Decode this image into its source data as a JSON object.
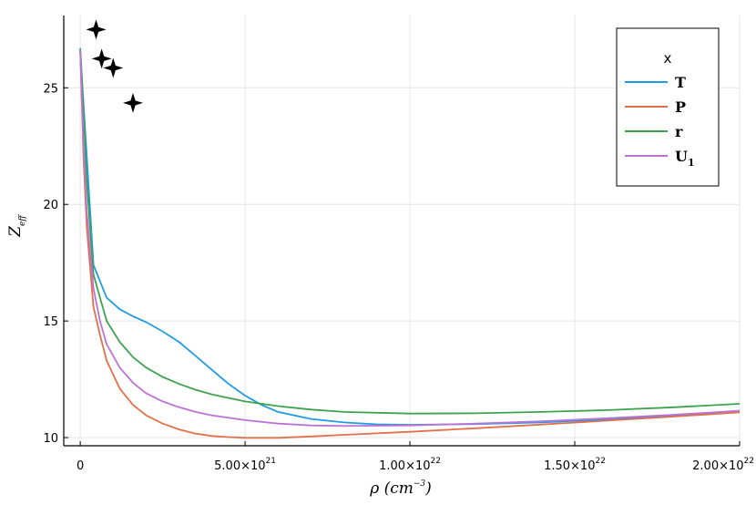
{
  "chart_data": {
    "type": "line",
    "xlabel": "ρ (cm",
    "xlabel_sup": "−3",
    "xlabel_close": ")",
    "ylabel": "Z",
    "ylabel_sub": "eff",
    "xlim": [
      -5e+20,
      2e+22
    ],
    "ylim": [
      9.65,
      28.1
    ],
    "grid": true,
    "legend_title": "x",
    "legend_position": "top-right",
    "x_ticks": [
      {
        "value": 0,
        "label": "0",
        "sup": ""
      },
      {
        "value": 5e+21,
        "label": "5.00×10",
        "sup": "21"
      },
      {
        "value": 1e+22,
        "label": "1.00×10",
        "sup": "22"
      },
      {
        "value": 1.5e+22,
        "label": "1.50×10",
        "sup": "22"
      },
      {
        "value": 2e+22,
        "label": "2.00×10",
        "sup": "22"
      }
    ],
    "y_ticks": [
      {
        "value": 10,
        "label": "10"
      },
      {
        "value": 15,
        "label": "15"
      },
      {
        "value": 20,
        "label": "20"
      },
      {
        "value": 25,
        "label": "25"
      }
    ],
    "series": [
      {
        "name": "T",
        "sub": "",
        "color": "#1f9be6",
        "points": [
          [
            0,
            26.6
          ],
          [
            4e+20,
            17.4
          ],
          [
            8e+20,
            16.0
          ],
          [
            1.2e+21,
            15.5
          ],
          [
            1.6e+21,
            15.2
          ],
          [
            2e+21,
            14.95
          ],
          [
            2.5e+21,
            14.55
          ],
          [
            3e+21,
            14.1
          ],
          [
            3.5e+21,
            13.5
          ],
          [
            4e+21,
            12.9
          ],
          [
            4.5e+21,
            12.3
          ],
          [
            5e+21,
            11.8
          ],
          [
            5.5e+21,
            11.4
          ],
          [
            6e+21,
            11.1
          ],
          [
            7e+21,
            10.8
          ],
          [
            8e+21,
            10.65
          ],
          [
            9e+21,
            10.57
          ],
          [
            1e+22,
            10.55
          ],
          [
            1.2e+22,
            10.58
          ],
          [
            1.4e+22,
            10.65
          ],
          [
            1.6e+22,
            10.78
          ],
          [
            1.8e+22,
            10.95
          ],
          [
            2e+22,
            11.15
          ]
        ]
      },
      {
        "name": "P",
        "sub": "",
        "color": "#e3704a",
        "points": [
          [
            0,
            26.6
          ],
          [
            1e+20,
            22.0
          ],
          [
            2e+20,
            19.0
          ],
          [
            4e+20,
            15.6
          ],
          [
            6e+20,
            14.4
          ],
          [
            8e+20,
            13.3
          ],
          [
            1.2e+21,
            12.1
          ],
          [
            1.6e+21,
            11.4
          ],
          [
            2e+21,
            10.95
          ],
          [
            2.5e+21,
            10.6
          ],
          [
            3e+21,
            10.35
          ],
          [
            3.5e+21,
            10.17
          ],
          [
            4e+21,
            10.07
          ],
          [
            4.5e+21,
            10.02
          ],
          [
            5e+21,
            9.99
          ],
          [
            6e+21,
            9.99
          ],
          [
            7e+21,
            10.05
          ],
          [
            8e+21,
            10.12
          ],
          [
            1e+22,
            10.25
          ],
          [
            1.2e+22,
            10.4
          ],
          [
            1.4e+22,
            10.56
          ],
          [
            1.6e+22,
            10.73
          ],
          [
            1.8e+22,
            10.9
          ],
          [
            2e+22,
            11.08
          ]
        ]
      },
      {
        "name": "r",
        "sub": "",
        "color": "#3ca34e",
        "points": [
          [
            0,
            26.7
          ],
          [
            1e+20,
            24.0
          ],
          [
            2e+20,
            21.0
          ],
          [
            4e+20,
            17.0
          ],
          [
            6e+20,
            16.0
          ],
          [
            8e+20,
            15.0
          ],
          [
            1.2e+21,
            14.1
          ],
          [
            1.6e+21,
            13.45
          ],
          [
            2e+21,
            13.0
          ],
          [
            2.5e+21,
            12.6
          ],
          [
            3e+21,
            12.3
          ],
          [
            3.5e+21,
            12.05
          ],
          [
            4e+21,
            11.85
          ],
          [
            5e+21,
            11.55
          ],
          [
            6e+21,
            11.35
          ],
          [
            7e+21,
            11.2
          ],
          [
            8e+21,
            11.1
          ],
          [
            1e+22,
            11.03
          ],
          [
            1.2e+22,
            11.04
          ],
          [
            1.4e+22,
            11.1
          ],
          [
            1.6e+22,
            11.18
          ],
          [
            1.8e+22,
            11.3
          ],
          [
            2e+22,
            11.45
          ]
        ]
      },
      {
        "name": "U",
        "sub": "1",
        "color": "#bb74d4",
        "points": [
          [
            0,
            26.6
          ],
          [
            1e+20,
            22.5
          ],
          [
            2e+20,
            19.7
          ],
          [
            4e+20,
            16.4
          ],
          [
            6e+20,
            15.0
          ],
          [
            8e+20,
            14.0
          ],
          [
            1.2e+21,
            13.0
          ],
          [
            1.6e+21,
            12.35
          ],
          [
            2e+21,
            11.9
          ],
          [
            2.5e+21,
            11.55
          ],
          [
            3e+21,
            11.3
          ],
          [
            3.5e+21,
            11.1
          ],
          [
            4e+21,
            10.95
          ],
          [
            5e+21,
            10.75
          ],
          [
            6e+21,
            10.6
          ],
          [
            7e+21,
            10.52
          ],
          [
            8e+21,
            10.5
          ],
          [
            1e+22,
            10.52
          ],
          [
            1.2e+22,
            10.6
          ],
          [
            1.4e+22,
            10.7
          ],
          [
            1.6e+22,
            10.83
          ],
          [
            1.8e+22,
            10.98
          ],
          [
            2e+22,
            11.15
          ]
        ]
      }
    ],
    "markers": {
      "shape": "star4",
      "color": "#000000",
      "points": [
        [
          4.8e+20,
          27.5
        ],
        [
          6.5e+20,
          26.25
        ],
        [
          1e+21,
          25.85
        ],
        [
          1.6e+21,
          24.35
        ]
      ]
    }
  }
}
